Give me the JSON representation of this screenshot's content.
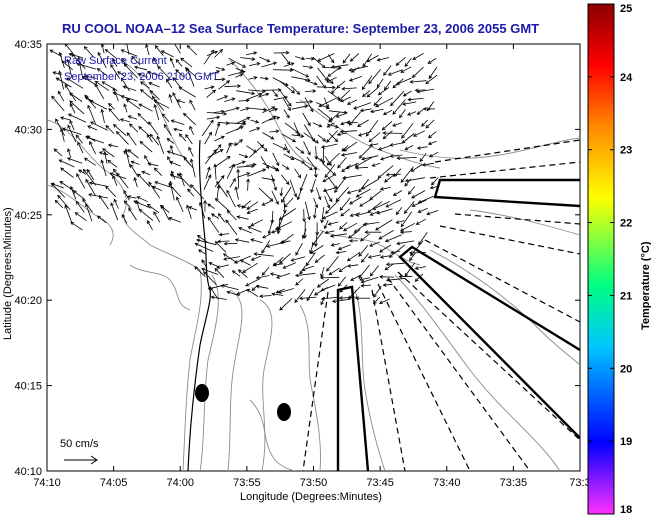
{
  "title": "RU COOL  NOAA–12  Sea Surface Temperature:  September 23, 2006 2055 GMT",
  "legend": {
    "line1": "Raw Surface Current",
    "line2": "September 23, 2006 2100 GMT"
  },
  "scale_label": "50 cm/s",
  "x_axis": {
    "label": "Longitude (Degrees:Minutes)",
    "ticks": [
      "74:10",
      "74:05",
      "74:00",
      "73:55",
      "73:50",
      "73:45",
      "73:40",
      "73:35",
      "73:3"
    ]
  },
  "y_axis": {
    "label": "Latitude (Degrees:Minutes)",
    "ticks": [
      "40:35",
      "40:30",
      "40:25",
      "40:20",
      "40:15",
      "40:10"
    ]
  },
  "colorbar": {
    "label": "Temperature (°C)",
    "ticks": [
      "25",
      "24",
      "23",
      "22",
      "21",
      "20",
      "19",
      "18"
    ],
    "range": [
      18,
      25
    ],
    "colors": [
      "#ff30ff",
      "#0000ff",
      "#00c8ff",
      "#00ff80",
      "#ffff00",
      "#ff8800",
      "#ff0000",
      "#8b0000"
    ]
  },
  "colors": {
    "title": "#1a1aa8",
    "vectors": "#000000",
    "contours": "#8c8c8c"
  }
}
